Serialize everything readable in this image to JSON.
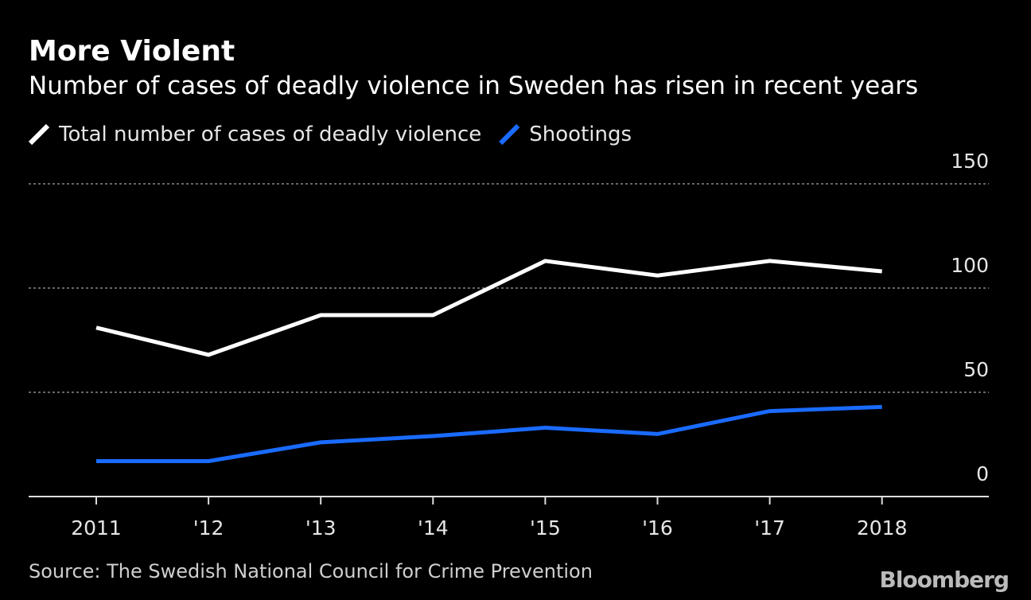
{
  "chart_data": {
    "type": "line",
    "title": "More Violent",
    "subtitle": "Number of cases of deadly violence in Sweden has risen in recent years",
    "categories": [
      "2011",
      "'12",
      "'13",
      "'14",
      "'15",
      "'16",
      "'17",
      "2018"
    ],
    "series": [
      {
        "name": "Total number of cases of deadly violence",
        "color": "#ffffff",
        "values": [
          81,
          68,
          87,
          87,
          113,
          106,
          113,
          108
        ]
      },
      {
        "name": "Shootings",
        "color": "#1a6bff",
        "values": [
          17,
          17,
          26,
          29,
          33,
          30,
          41,
          43
        ]
      }
    ],
    "ylim": [
      0,
      150
    ],
    "yticks": [
      0,
      50,
      100,
      150
    ],
    "grid": true,
    "source": "Source: The Swedish National Council for Crime Prevention",
    "brand": "Bloomberg"
  }
}
